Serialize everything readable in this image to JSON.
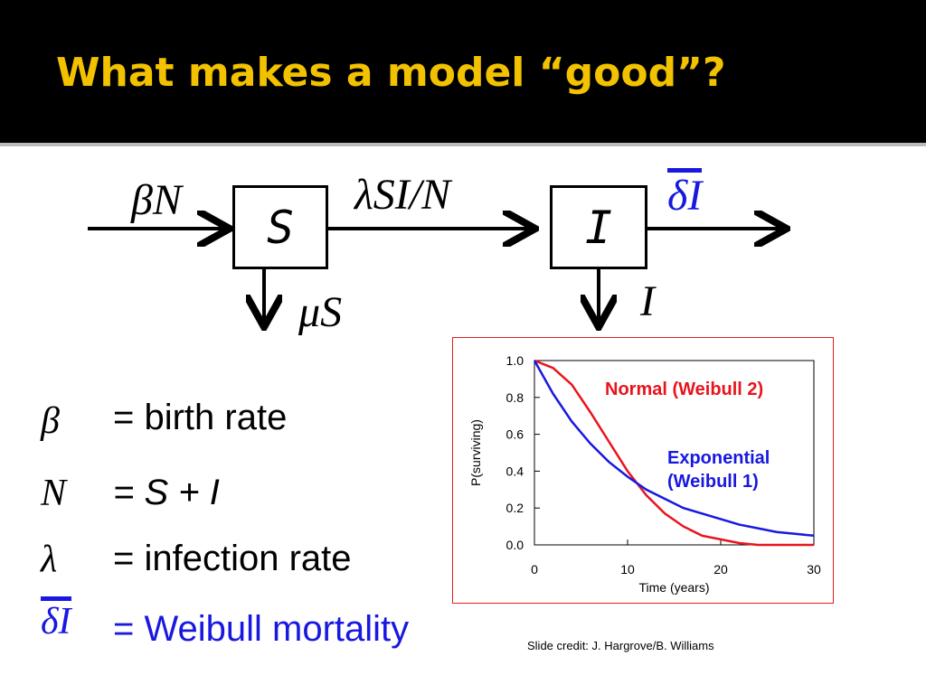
{
  "header": {
    "title": "What makes a model “good”?"
  },
  "diagram": {
    "boxes": [
      "S",
      "I"
    ],
    "labels": {
      "inflow": "βN",
      "transfer": "λSI/N",
      "outflow": "δI",
      "s_death": "μS",
      "i_death": "I"
    }
  },
  "definitions": [
    {
      "symbol": "β",
      "text": "= birth rate"
    },
    {
      "symbol": "N",
      "text": "= S + I"
    },
    {
      "symbol": "λ",
      "text": "= infection rate"
    },
    {
      "symbol": "δI",
      "text": "= Weibull mortality"
    }
  ],
  "chart_data": {
    "type": "line",
    "xlabel": "Time (years)",
    "ylabel": "P(surviving)",
    "x": [
      0,
      2,
      4,
      6,
      8,
      10,
      12,
      14,
      16,
      18,
      20,
      22,
      24,
      26,
      28,
      30
    ],
    "series": [
      {
        "name": "Normal (Weibull 2)",
        "color": "#e8141c",
        "values": [
          1,
          0.96,
          0.87,
          0.72,
          0.56,
          0.4,
          0.27,
          0.17,
          0.1,
          0.05,
          0.03,
          0.01,
          0.0,
          0.0,
          0.0,
          0.0
        ]
      },
      {
        "name": "Exponential (Weibull 1)",
        "color": "#1818e0",
        "values": [
          1,
          0.82,
          0.67,
          0.55,
          0.45,
          0.37,
          0.3,
          0.25,
          0.2,
          0.17,
          0.14,
          0.11,
          0.09,
          0.07,
          0.06,
          0.05
        ]
      }
    ],
    "xlim": [
      0,
      30
    ],
    "ylim": [
      0,
      1
    ],
    "xticks": [
      0,
      10,
      20,
      30
    ],
    "yticks": [
      {
        "value": 0,
        "label": "0.0"
      },
      0.2,
      0.4,
      0.6,
      0.8,
      {
        "value": 1,
        "label": "1.0"
      }
    ]
  },
  "credit": "Slide credit: J. Hargrove/B. Williams"
}
